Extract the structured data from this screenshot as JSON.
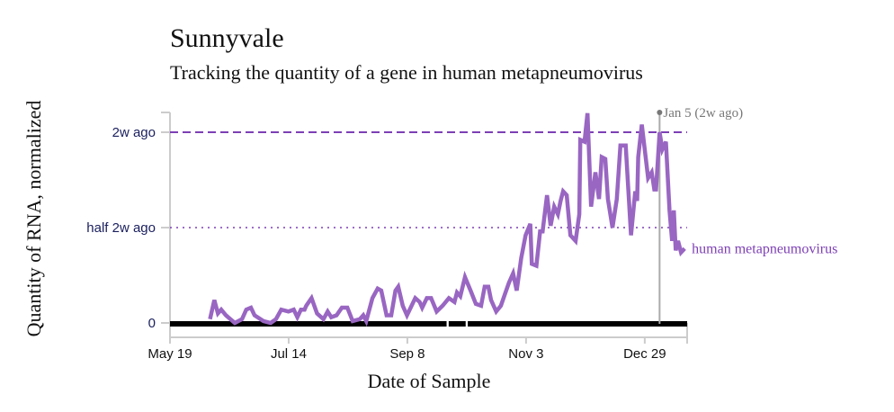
{
  "chart_data": {
    "type": "line",
    "title": "Sunnyvale",
    "subtitle": "Tracking the quantity of a gene in human metapneumovirus",
    "xlabel": "Date of Sample",
    "ylabel": "Quantity of RNA, normalized",
    "x_unit": "days since May 19",
    "xlim": [
      0,
      244
    ],
    "ylim": [
      0,
      1.1
    ],
    "x_ticks": [
      {
        "day": 0,
        "label": "May 19"
      },
      {
        "day": 56,
        "label": "Jul 14"
      },
      {
        "day": 112,
        "label": "Sep 8"
      },
      {
        "day": 168,
        "label": "Nov 3"
      },
      {
        "day": 224,
        "label": "Dec 29"
      }
    ],
    "y_ticks": [
      {
        "value": 0,
        "label": "0"
      },
      {
        "value": 0.5,
        "label": "half 2w ago"
      },
      {
        "value": 1,
        "label": "2w ago"
      }
    ],
    "reference_lines": [
      {
        "value": 1,
        "style": "dashed"
      },
      {
        "value": 0.5,
        "style": "dotted"
      }
    ],
    "marker": {
      "day": 231,
      "label": "Jan 5 (2w ago)"
    },
    "coverage_segments": [
      [
        0,
        130.5
      ],
      [
        131.5,
        139.5
      ],
      [
        140.5,
        244
      ]
    ],
    "series": [
      {
        "name": "human metapneumovirus",
        "color": "#9966c2",
        "points": [
          [
            18.9,
            0.02
          ],
          [
            20.9,
            0.12
          ],
          [
            22.6,
            0.05
          ],
          [
            24.2,
            0.07
          ],
          [
            26.4,
            0.04
          ],
          [
            30.6,
            0
          ],
          [
            34,
            0.02
          ],
          [
            36,
            0.07
          ],
          [
            38.2,
            0.08
          ],
          [
            39.9,
            0.04
          ],
          [
            44.1,
            0.01
          ],
          [
            47.5,
            0
          ],
          [
            50,
            0.02
          ],
          [
            52.5,
            0.07
          ],
          [
            55.9,
            0.06
          ],
          [
            58.4,
            0.07
          ],
          [
            60.1,
            0.03
          ],
          [
            61.8,
            0.07
          ],
          [
            63.5,
            0.07
          ],
          [
            64.3,
            0.09
          ],
          [
            66.8,
            0.13
          ],
          [
            69.4,
            0.05
          ],
          [
            72.4,
            0.02
          ],
          [
            74.4,
            0.06
          ],
          [
            76.1,
            0.03
          ],
          [
            78.6,
            0.04
          ],
          [
            81.1,
            0.08
          ],
          [
            83.7,
            0.08
          ],
          [
            86.2,
            0.01
          ],
          [
            89.6,
            0.02
          ],
          [
            91.2,
            0.04
          ],
          [
            92.6,
            0.01
          ],
          [
            95.5,
            0.13
          ],
          [
            98,
            0.18
          ],
          [
            99.7,
            0.17
          ],
          [
            102.2,
            0.04
          ],
          [
            104.4,
            0.04
          ],
          [
            106.4,
            0.17
          ],
          [
            107.7,
            0.19
          ],
          [
            109.8,
            0.09
          ],
          [
            111.8,
            0.04
          ],
          [
            115.7,
            0.13
          ],
          [
            117.8,
            0.11
          ],
          [
            119,
            0.08
          ],
          [
            121.2,
            0.13
          ],
          [
            123.2,
            0.13
          ],
          [
            125.8,
            0.06
          ],
          [
            128.6,
            0.09
          ],
          [
            131.6,
            0.13
          ],
          [
            134.2,
            0.11
          ],
          [
            135.4,
            0.16
          ],
          [
            137,
            0.14
          ],
          [
            139.2,
            0.24
          ],
          [
            141.8,
            0.17
          ],
          [
            144.3,
            0.1
          ],
          [
            146.8,
            0.09
          ],
          [
            148.5,
            0.19
          ],
          [
            150.2,
            0.19
          ],
          [
            151.5,
            0.12
          ],
          [
            153.9,
            0.06
          ],
          [
            156.1,
            0.09
          ],
          [
            157.7,
            0.14
          ],
          [
            159.9,
            0.21
          ],
          [
            161.9,
            0.26
          ],
          [
            163.6,
            0.17
          ],
          [
            165.7,
            0.34
          ],
          [
            167.8,
            0.46
          ],
          [
            170,
            0.52
          ],
          [
            170.7,
            0.31
          ],
          [
            172.9,
            0.3
          ],
          [
            174.6,
            0.48
          ],
          [
            175.8,
            0.48
          ],
          [
            177.9,
            0.67
          ],
          [
            179.6,
            0.51
          ],
          [
            181.3,
            0.61
          ],
          [
            183,
            0.57
          ],
          [
            184.3,
            0.64
          ],
          [
            185.5,
            0.69
          ],
          [
            187.2,
            0.67
          ],
          [
            188.9,
            0.46
          ],
          [
            191.4,
            0.43
          ],
          [
            193.1,
            0.57
          ],
          [
            193.6,
            0.96
          ],
          [
            195.6,
            0.95
          ],
          [
            197,
            1.1
          ],
          [
            198.7,
            0.61
          ],
          [
            200.7,
            0.79
          ],
          [
            202.4,
            0.65
          ],
          [
            203.7,
            0.87
          ],
          [
            205.4,
            0.86
          ],
          [
            206.6,
            0.65
          ],
          [
            208.8,
            0.5
          ],
          [
            210.8,
            0.65
          ],
          [
            212.5,
            0.93
          ],
          [
            215,
            0.93
          ],
          [
            217.5,
            0.46
          ],
          [
            219.5,
            0.69
          ],
          [
            220.4,
            0.64
          ],
          [
            220.9,
            0.87
          ],
          [
            222.6,
            1.04
          ],
          [
            225.6,
            0.76
          ],
          [
            227.3,
            0.79
          ],
          [
            228.5,
            0.7
          ],
          [
            229.3,
            0.7
          ],
          [
            231,
            1.0
          ],
          [
            232.3,
            0.91
          ],
          [
            234,
            0.95
          ],
          [
            235.7,
            0.59
          ],
          [
            236.9,
            0.43
          ],
          [
            237.7,
            0.59
          ],
          [
            238.6,
            0.38
          ],
          [
            239.7,
            0.43
          ],
          [
            241.1,
            0.37
          ],
          [
            242.8,
            0.39
          ]
        ]
      }
    ]
  }
}
